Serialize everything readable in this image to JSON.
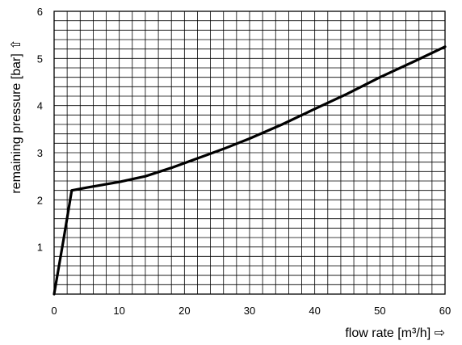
{
  "chart_data": {
    "type": "line",
    "xlabel": "flow rate [m³/h] ⇨",
    "ylabel": "remaining pressure [bar] ⇧",
    "xlim": [
      0,
      60
    ],
    "ylim": [
      0,
      6
    ],
    "x_ticks": [
      "0",
      "10",
      "20",
      "30",
      "40",
      "50",
      "60"
    ],
    "y_ticks": [
      "1",
      "2",
      "3",
      "4",
      "5",
      "6"
    ],
    "grid": true,
    "minor_grid": {
      "x_step": 2,
      "y_step": 0.2
    },
    "series": [
      {
        "x": [
          0,
          1.5,
          2.7,
          5,
          10,
          14,
          18,
          22,
          26,
          30,
          35,
          40,
          45,
          50,
          55,
          60
        ],
        "y": [
          0,
          1.2,
          2.2,
          2.26,
          2.38,
          2.5,
          2.68,
          2.88,
          3.08,
          3.3,
          3.6,
          3.93,
          4.25,
          4.6,
          4.92,
          5.25
        ]
      }
    ],
    "line_color": "#000000"
  }
}
